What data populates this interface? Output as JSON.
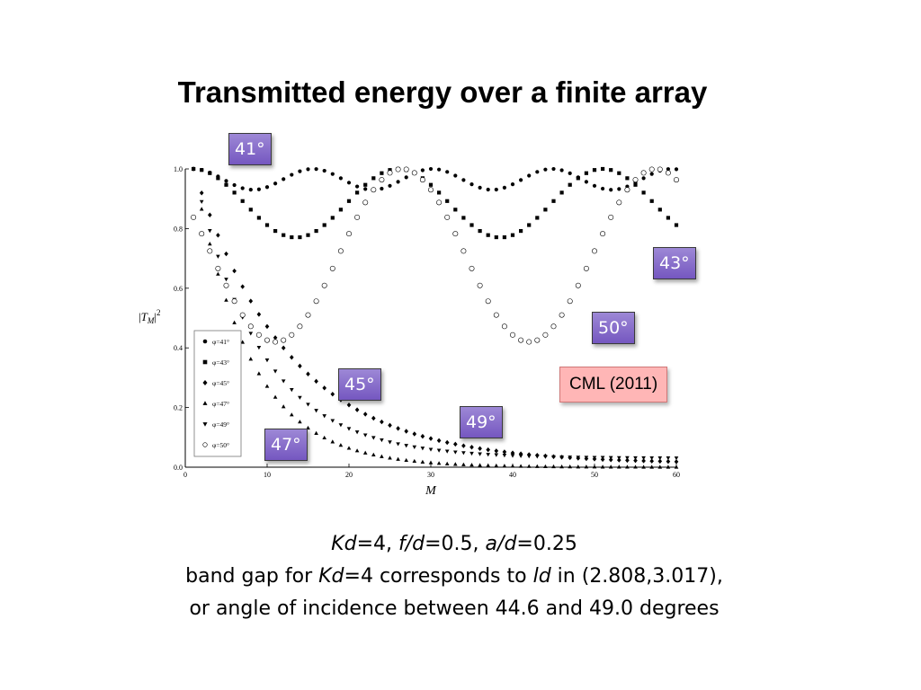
{
  "title": "Transmitted energy over a finite array",
  "annotations": {
    "tag41": "41°",
    "tag43": "43°",
    "tag45": "45°",
    "tag47": "47°",
    "tag49": "49°",
    "tag50": "50°",
    "cml": "CML (2011)"
  },
  "caption": {
    "line1": {
      "kd_label": "Kd",
      "kd_value": "=4, ",
      "fd_label": "f/d",
      "fd_value": "=0.5, ",
      "ad_label": "a/d",
      "ad_value": "=0.25"
    },
    "line2": {
      "prefix": "band gap for ",
      "kd_label": "Kd",
      "middle": "=4 corresponds to ",
      "ld_label": "ld",
      "suffix": " in (2.808,3.017),"
    },
    "line3": "or angle of incidence between 44.6 and 49.0 degrees"
  },
  "chart_data": {
    "type": "scatter",
    "xlabel": "M",
    "ylabel": "|T_M|^2",
    "xlim": [
      0,
      60
    ],
    "ylim": [
      0,
      1
    ],
    "xticks": [
      "0",
      "10",
      "20",
      "30",
      "40",
      "50",
      "60"
    ],
    "yticks": [
      "0.0",
      "0.2",
      "0.4",
      "0.6",
      "0.8",
      "1.0"
    ],
    "legend_position": "bottom-left",
    "series": [
      {
        "name": "φ=41°",
        "marker": "circle-filled",
        "model": "osc",
        "min": 0.93,
        "period": 14.6,
        "start": 1
      },
      {
        "name": "φ=43°",
        "marker": "square",
        "model": "osc",
        "min": 0.77,
        "period": 25,
        "start": 1
      },
      {
        "name": "φ=45°",
        "marker": "diamond",
        "model": "decay",
        "rate": 0.085,
        "floor": 0.012
      },
      {
        "name": "φ=47°",
        "marker": "triangle-up",
        "model": "decay",
        "rate": 0.145,
        "floor": 0.0
      },
      {
        "name": "φ=49°",
        "marker": "triangle-down",
        "model": "decay",
        "rate": 0.12,
        "floor": 0.03
      },
      {
        "name": "φ=50°",
        "marker": "circle-open",
        "model": "osc",
        "min": 0.42,
        "period": 31,
        "start": -4.5
      }
    ]
  }
}
